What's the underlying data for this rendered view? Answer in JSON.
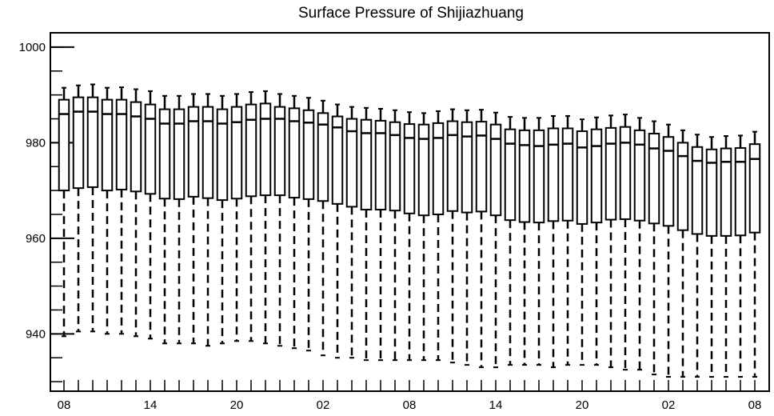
{
  "chart_data": {
    "type": "boxplot",
    "title": "Surface Pressure of Shijiazhuang",
    "xlabel": "",
    "ylabel": "",
    "ylim": [
      928,
      1003
    ],
    "yticks": [
      940,
      960,
      980,
      1000
    ],
    "x_tick_labels": [
      "08",
      "14",
      "20",
      "02",
      "08",
      "14",
      "20",
      "02",
      "08"
    ],
    "x_tick_label_steps": [
      0,
      6,
      12,
      18,
      24,
      30,
      36,
      42,
      48
    ],
    "step_hours": 1,
    "whisker_style": "dashed",
    "series": [
      {
        "whisker_low": [
          939.5,
          940.5,
          940.5,
          940.0,
          940.0,
          939.5,
          939.0,
          938.0,
          938.0,
          938.0,
          937.5,
          938.0,
          938.5,
          938.5,
          938.0,
          937.5,
          937.0,
          936.5,
          935.5,
          935.0,
          935.0,
          934.5,
          934.5,
          934.5,
          934.5,
          934.5,
          934.5,
          934.0,
          933.5,
          933.0,
          933.0,
          933.5,
          933.5,
          933.5,
          933.0,
          933.5,
          933.5,
          933.5,
          933.0,
          932.5,
          932.5,
          931.5,
          931.0,
          931.0,
          931.0,
          931.0,
          931.0,
          931.0,
          931.0
        ],
        "q1": [
          970.0,
          970.5,
          970.7,
          970.0,
          970.2,
          969.8,
          969.3,
          968.3,
          968.2,
          968.7,
          968.4,
          968.0,
          968.3,
          968.8,
          969.0,
          969.0,
          968.5,
          968.2,
          967.8,
          967.2,
          966.6,
          966.0,
          966.0,
          965.8,
          965.2,
          964.8,
          965.0,
          965.7,
          965.4,
          965.6,
          964.8,
          963.8,
          963.4,
          963.3,
          963.6,
          963.7,
          963.0,
          963.3,
          963.9,
          964.0,
          963.7,
          963.1,
          962.6,
          961.7,
          960.9,
          960.5,
          960.5,
          960.6,
          961.2
        ],
        "median": [
          986.0,
          986.5,
          986.5,
          986.0,
          986.0,
          985.5,
          985.0,
          984.0,
          984.0,
          984.5,
          984.5,
          984.0,
          984.3,
          984.8,
          985.0,
          985.0,
          984.5,
          984.2,
          983.8,
          983.2,
          982.4,
          982.0,
          982.0,
          981.6,
          981.0,
          980.8,
          981.0,
          981.6,
          981.3,
          981.5,
          980.8,
          979.8,
          979.5,
          979.3,
          979.6,
          979.8,
          979.0,
          979.3,
          979.8,
          980.0,
          979.6,
          978.8,
          978.3,
          977.2,
          976.2,
          975.8,
          976.0,
          976.0,
          976.6
        ],
        "q3": [
          989.0,
          989.5,
          989.5,
          989.0,
          989.0,
          988.5,
          988.0,
          987.0,
          987.0,
          987.5,
          987.5,
          987.0,
          987.5,
          988.0,
          988.2,
          987.5,
          987.2,
          986.8,
          986.2,
          985.5,
          985.0,
          984.8,
          984.6,
          984.3,
          983.9,
          983.8,
          984.1,
          984.5,
          984.3,
          984.4,
          983.8,
          982.8,
          982.6,
          982.6,
          983.0,
          983.0,
          982.4,
          982.8,
          983.1,
          983.3,
          982.6,
          981.9,
          981.2,
          980.0,
          979.1,
          978.6,
          978.8,
          978.9,
          979.7
        ],
        "whisker_high": [
          991.5,
          992.0,
          992.2,
          991.5,
          991.6,
          991.2,
          990.8,
          989.8,
          989.8,
          990.2,
          990.2,
          989.8,
          990.2,
          990.6,
          990.8,
          990.2,
          989.8,
          989.4,
          988.8,
          988.0,
          987.5,
          987.3,
          987.1,
          986.8,
          986.4,
          986.2,
          986.6,
          987.0,
          986.8,
          986.9,
          986.3,
          985.4,
          985.2,
          985.2,
          985.6,
          985.6,
          984.9,
          985.3,
          985.7,
          985.9,
          985.2,
          984.5,
          983.8,
          982.6,
          981.7,
          981.2,
          981.4,
          981.5,
          982.3
        ]
      }
    ]
  }
}
